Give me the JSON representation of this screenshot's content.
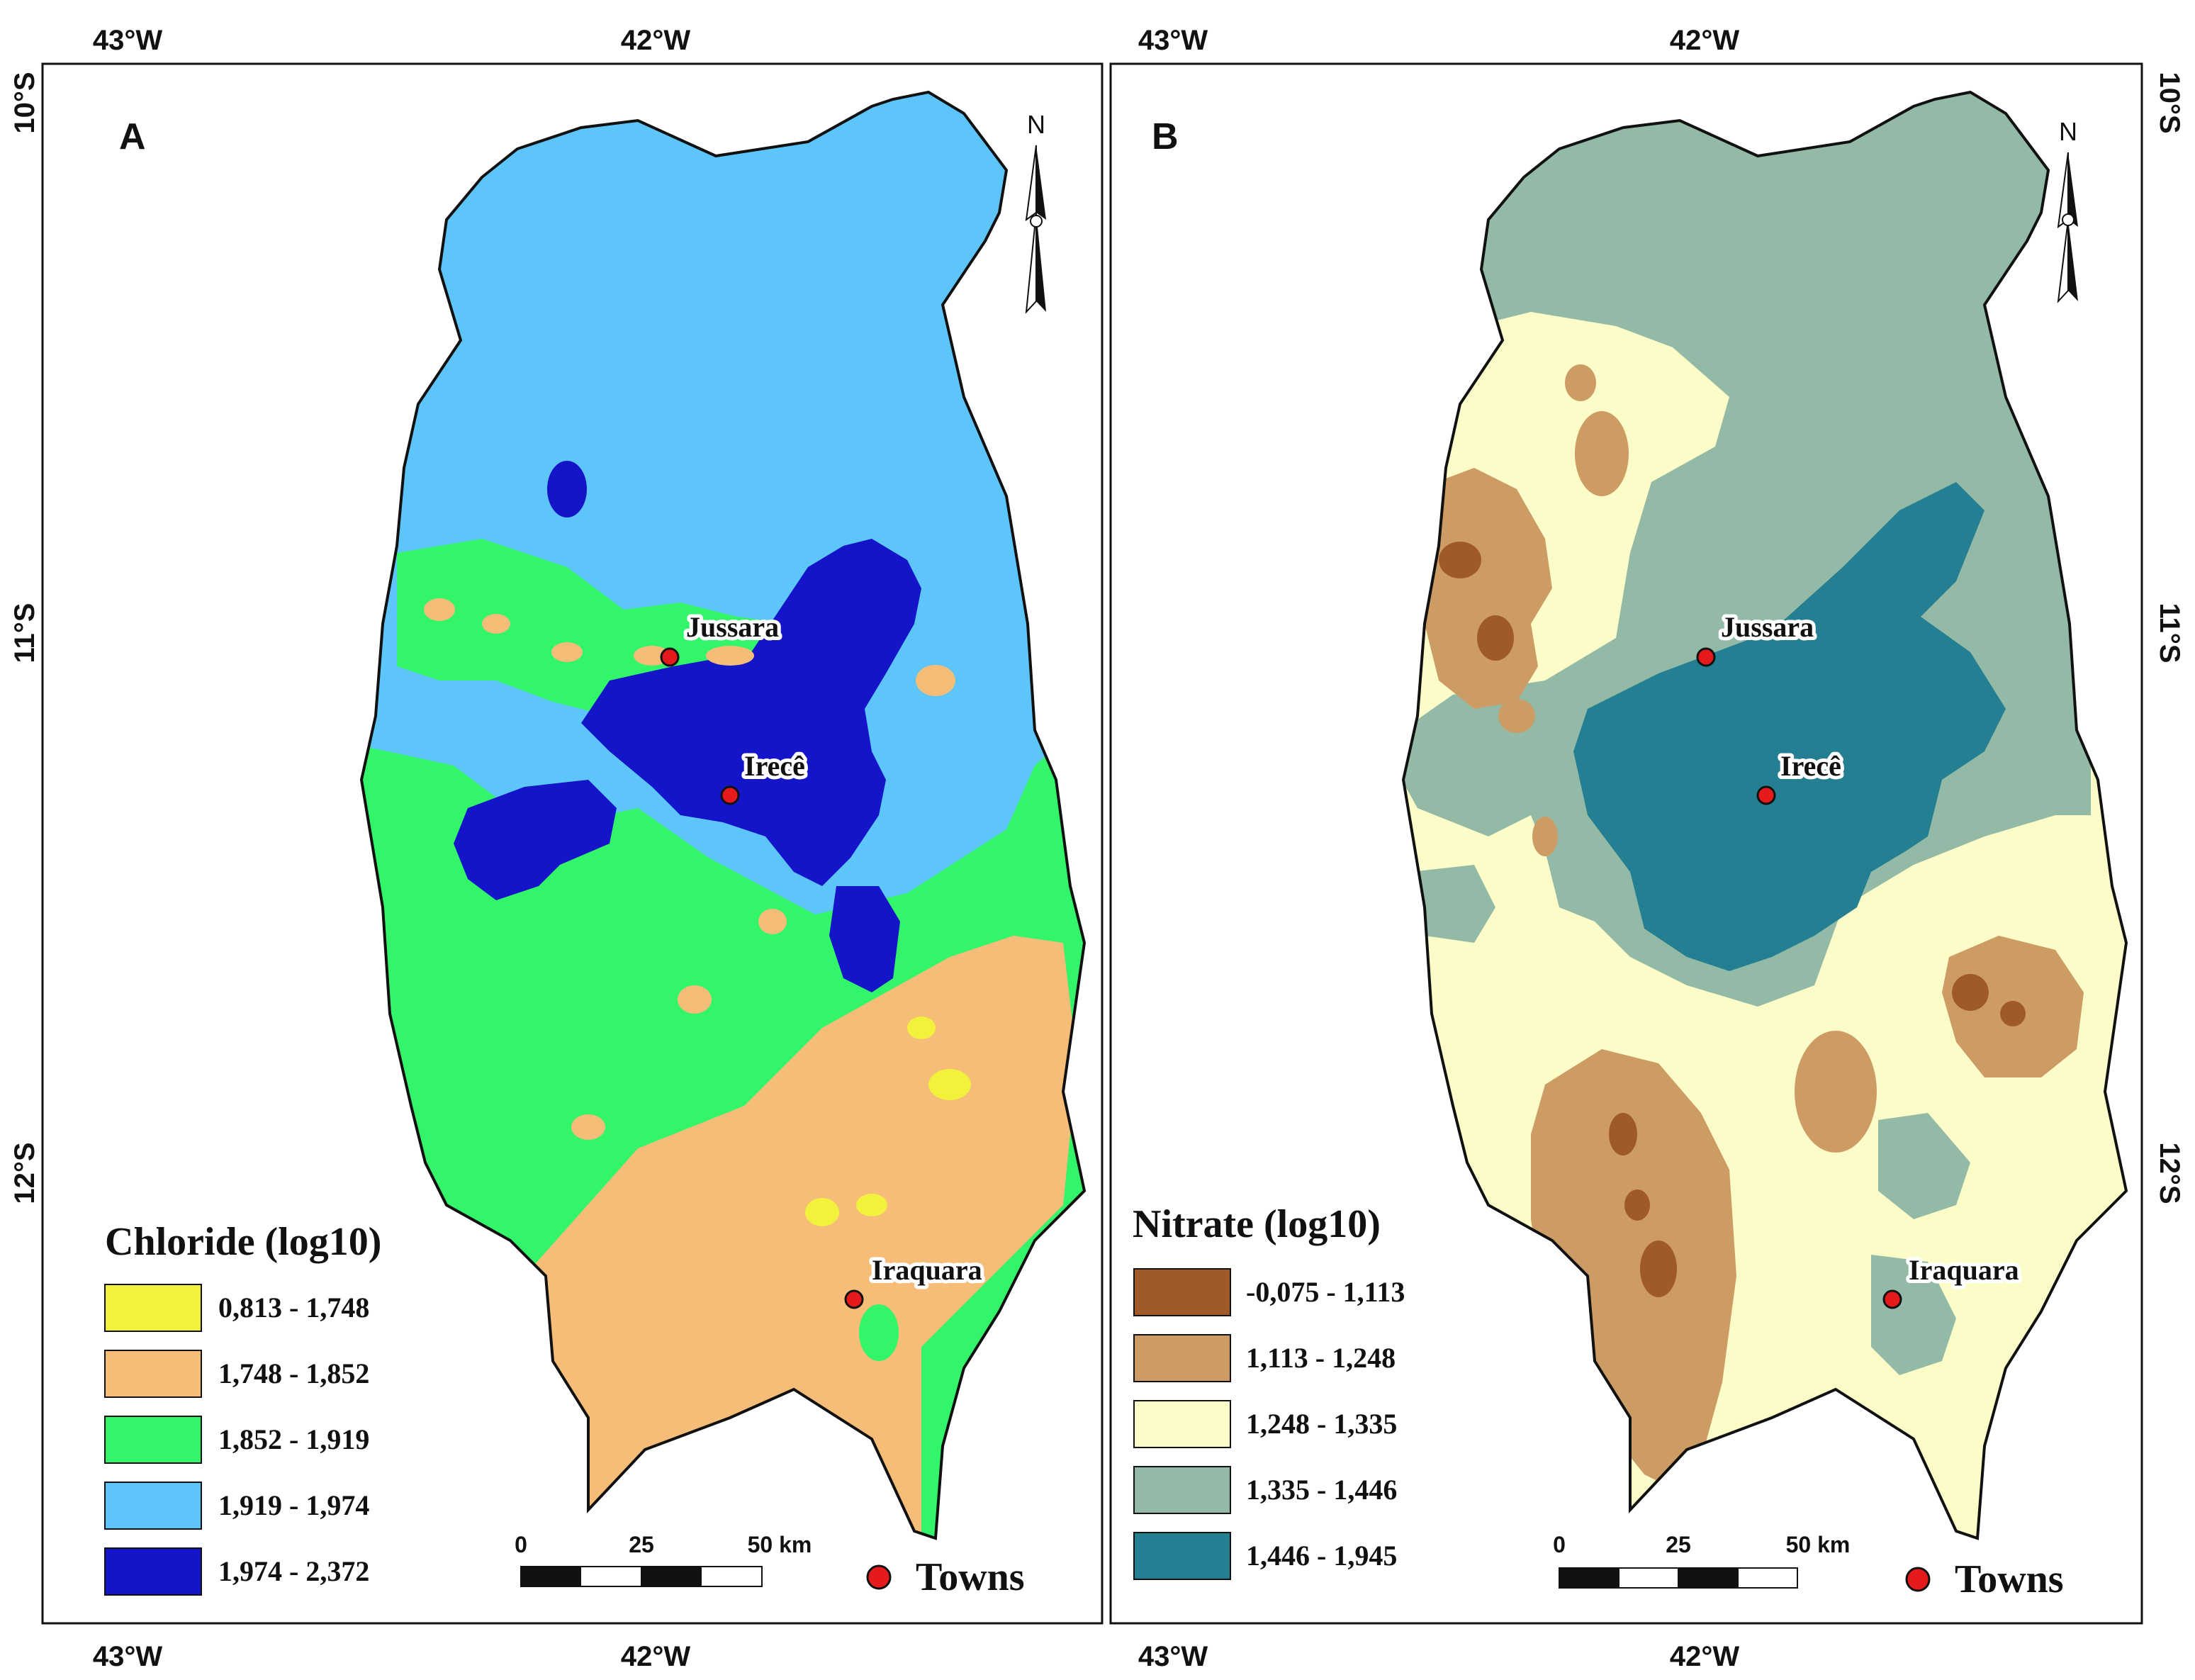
{
  "map_a": {
    "panel_letter": "A",
    "legend_title": "Chloride (log10)",
    "classes": [
      {
        "label": "0,813 - 1,748",
        "color": "#f2f23c"
      },
      {
        "label": "1,748 - 1,852",
        "color": "#f5bd78"
      },
      {
        "label": "1,852 - 1,919",
        "color": "#33f56a"
      },
      {
        "label": "1,919 - 1,974",
        "color": "#5ec5fa"
      },
      {
        "label": "1,974 - 2,372",
        "color": "#1414c8"
      }
    ]
  },
  "map_b": {
    "panel_letter": "B",
    "legend_title": "Nitrate (log10)",
    "classes": [
      {
        "label": "-0,075 - 1,113",
        "color": "#a05a28"
      },
      {
        "label": "1,113 - 1,248",
        "color": "#cd9c64"
      },
      {
        "label": "1,248 - 1,335",
        "color": "#fcfcc8"
      },
      {
        "label": "1,335 - 1,446",
        "color": "#93baa6"
      },
      {
        "label": "1,446 - 1,945",
        "color": "#247f92"
      }
    ]
  },
  "coordinates": {
    "lon_1": "43°W",
    "lon_2": "42°W",
    "lat_1": "10°S",
    "lat_2": "11°S",
    "lat_3": "12°S"
  },
  "towns": {
    "jussara": "Jussara",
    "irece": "Irecê",
    "iraquara": "Iraquara",
    "legend_label": "Towns",
    "marker_color": "#e41a1c"
  },
  "scale_bar": {
    "tick_0": "0",
    "tick_25": "25",
    "tick_50": "50 km"
  },
  "north_arrow": {
    "label": "N"
  }
}
